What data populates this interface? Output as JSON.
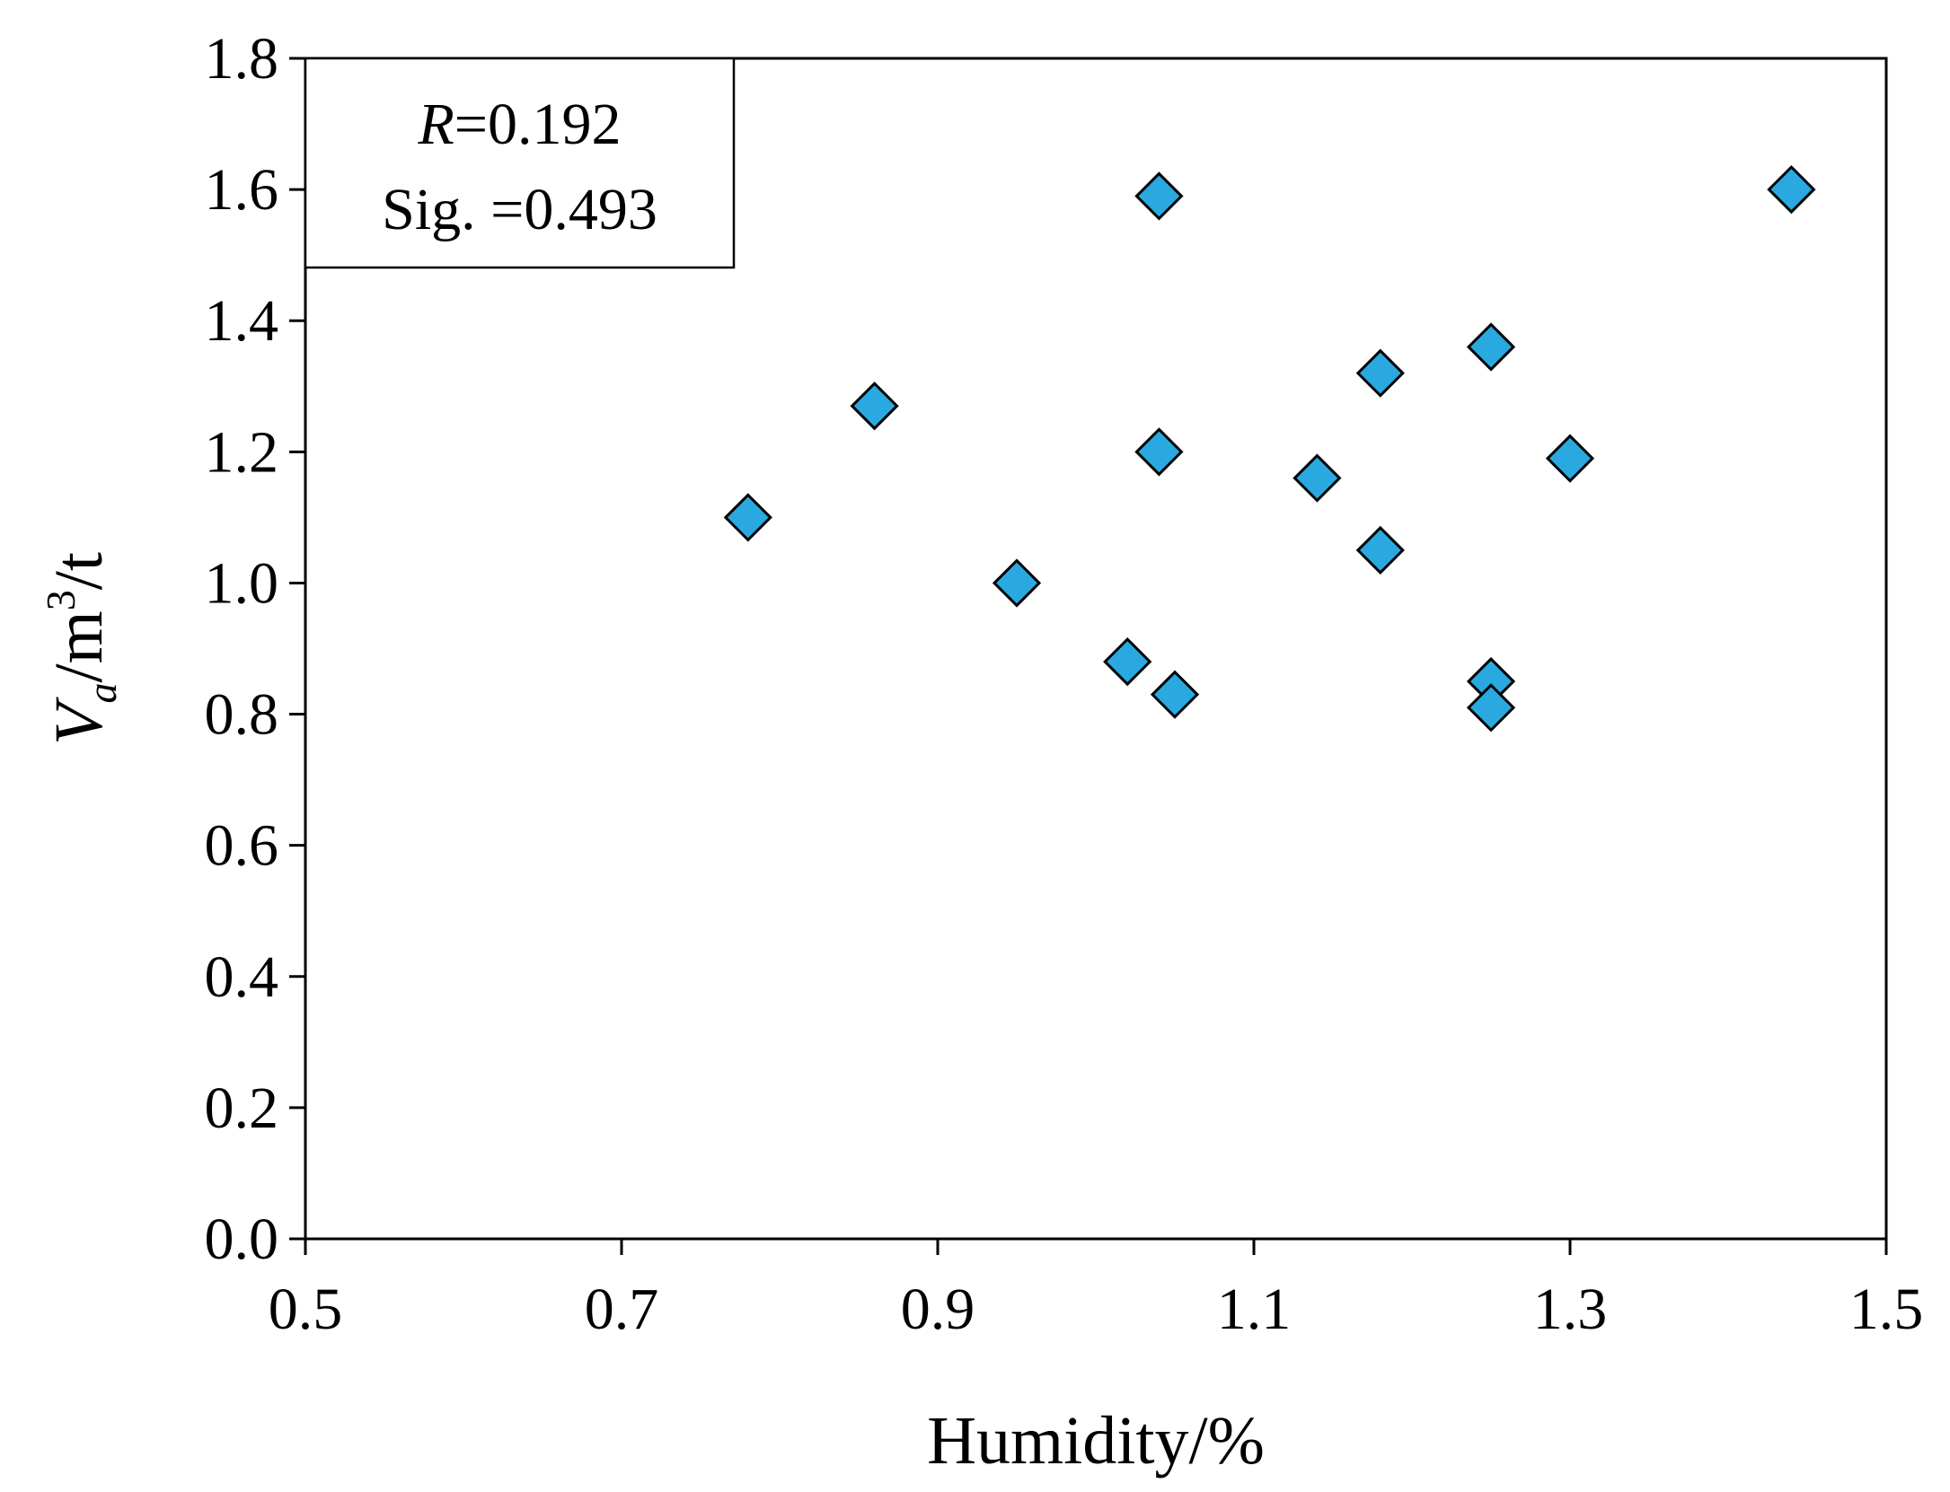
{
  "chart_data": {
    "type": "scatter",
    "title": "",
    "xlabel": "Humidity/%",
    "ylabel_parts": {
      "main": "V",
      "subscript": "a",
      "unit_prefix": "/m",
      "superscript": "3",
      "unit_suffix": "/t"
    },
    "xlim": [
      0.5,
      1.5
    ],
    "ylim": [
      0.0,
      1.8
    ],
    "xticks": [
      "0.5",
      "0.7",
      "0.9",
      "1.1",
      "1.3",
      "1.5"
    ],
    "yticks": [
      "0.0",
      "0.2",
      "0.4",
      "0.6",
      "0.8",
      "1.0",
      "1.2",
      "1.4",
      "1.6",
      "1.8"
    ],
    "grid": false,
    "marker": "diamond",
    "marker_color": "#29A9E0",
    "marker_edge_color": "#000000",
    "points": [
      {
        "x": 0.78,
        "y": 1.1
      },
      {
        "x": 0.86,
        "y": 1.27
      },
      {
        "x": 0.95,
        "y": 1.0
      },
      {
        "x": 1.02,
        "y": 0.88
      },
      {
        "x": 1.04,
        "y": 1.59
      },
      {
        "x": 1.04,
        "y": 1.2
      },
      {
        "x": 1.05,
        "y": 0.83
      },
      {
        "x": 1.14,
        "y": 1.16
      },
      {
        "x": 1.18,
        "y": 1.32
      },
      {
        "x": 1.18,
        "y": 1.05
      },
      {
        "x": 1.25,
        "y": 1.36
      },
      {
        "x": 1.25,
        "y": 0.85
      },
      {
        "x": 1.25,
        "y": 0.81
      },
      {
        "x": 1.3,
        "y": 1.19
      },
      {
        "x": 1.44,
        "y": 1.6
      }
    ],
    "annotation": {
      "r_symbol": "R",
      "r_value": "=0.192",
      "sig_line": "Sig. =0.493",
      "placement": "top-left"
    }
  }
}
